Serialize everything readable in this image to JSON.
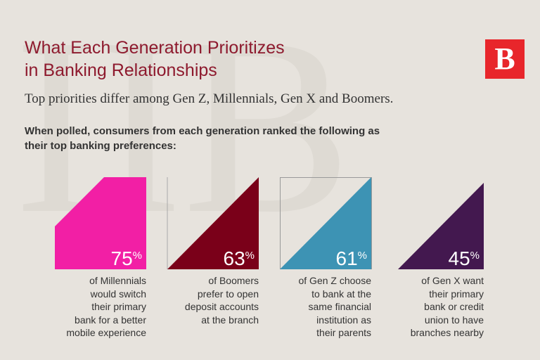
{
  "header": {
    "title_lines": [
      "What Each Generation Prioritizes",
      "in Banking Relationships"
    ],
    "subtitle": "Top priorities differ among Gen Z, Millennials, Gen X and Boomers.",
    "intro_lines": [
      "When polled, consumers from each generation ranked the following as",
      "their top banking preferences:"
    ],
    "logo": "B"
  },
  "stats": [
    {
      "number": 75,
      "unit": "%",
      "lines": [
        "of Millennials",
        "would switch",
        "their primary",
        "bank for a better",
        "mobile experience"
      ]
    },
    {
      "number": 63,
      "unit": "%",
      "lines": [
        "of Boomers",
        "prefer to open",
        "deposit accounts",
        "at the branch"
      ]
    },
    {
      "number": 61,
      "unit": "%",
      "lines": [
        "of Gen Z choose",
        "to bank at the",
        "same financial",
        "institution as",
        "their parents"
      ]
    },
    {
      "number": 45,
      "unit": "%",
      "lines": [
        "of Gen X want",
        "their primary",
        "bank or credit",
        "union to have",
        "branches nearby"
      ]
    }
  ]
}
